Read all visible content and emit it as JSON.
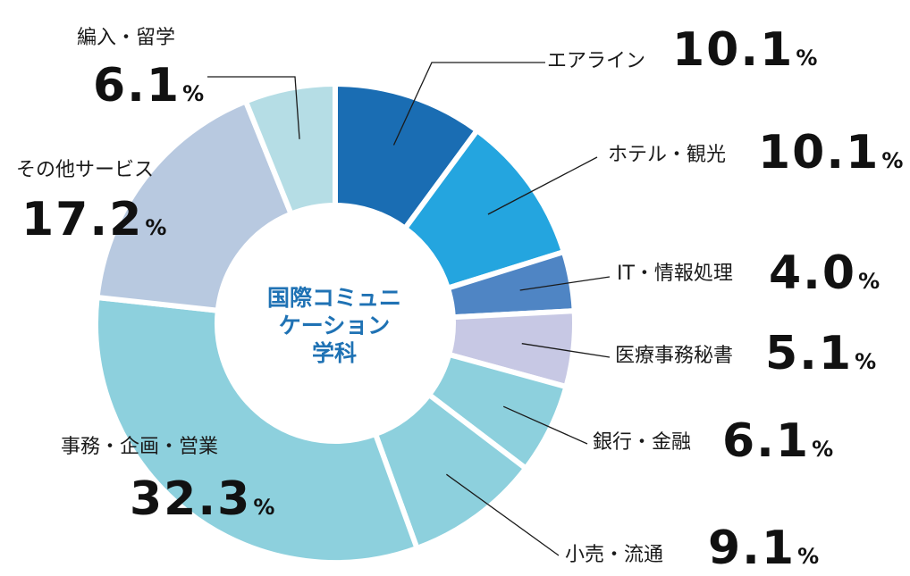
{
  "chart_data": {
    "type": "pie",
    "center_title": [
      "国際コミュニ",
      "ケーション",
      "学科"
    ],
    "unit": "%",
    "slices": [
      {
        "label": "エアライン",
        "value": 10.1,
        "color": "#1a6db3"
      },
      {
        "label": "ホテル・観光",
        "value": 10.1,
        "color": "#24a5df"
      },
      {
        "label": "IT・情報処理",
        "value": 4.0,
        "color": "#4f85c4"
      },
      {
        "label": "医療事務秘書",
        "value": 5.1,
        "color": "#c7c8e4"
      },
      {
        "label": "銀行・金融",
        "value": 6.1,
        "color": "#8dd0dd"
      },
      {
        "label": "小売・流通",
        "value": 9.1,
        "color": "#8dd0dd"
      },
      {
        "label": "事務・企画・営業",
        "value": 32.3,
        "color": "#8dd0dd"
      },
      {
        "label": "その他サービス",
        "value": 17.2,
        "color": "#b8c9e0"
      },
      {
        "label": "編入・留学",
        "value": 6.1,
        "color": "#b5dde5"
      }
    ]
  }
}
